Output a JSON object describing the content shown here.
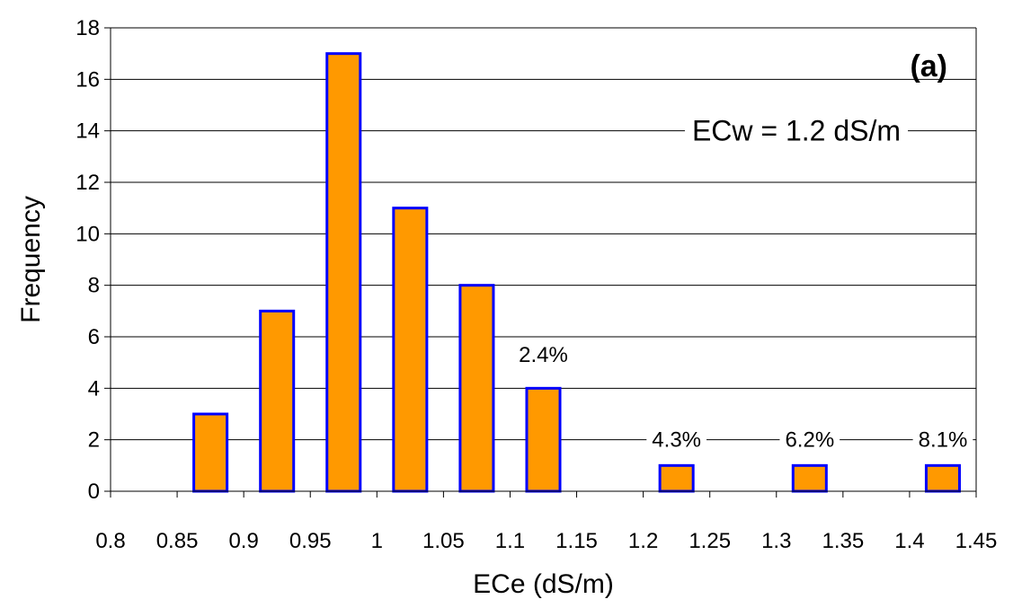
{
  "chart_data": {
    "type": "bar",
    "xlabel": "ECe (dS/m)",
    "ylabel": "Frequency",
    "panel_label": "(a)",
    "ylim": [
      0,
      18
    ],
    "y_ticks": [
      0,
      2,
      4,
      6,
      8,
      10,
      12,
      14,
      16,
      18
    ],
    "xlim": [
      0.8,
      1.45
    ],
    "x_tick_labels": [
      "0.8",
      "0.85",
      "0.9",
      "0.95",
      "1",
      "1.05",
      "1.1",
      "1.15",
      "1.2",
      "1.25",
      "1.3",
      "1.35",
      "1.4",
      "1.45"
    ],
    "categories": [
      0.875,
      0.925,
      0.975,
      1.025,
      1.075,
      1.125,
      1.225,
      1.325,
      1.425
    ],
    "values": [
      3,
      7,
      17,
      11,
      8,
      4,
      1,
      1,
      1
    ],
    "grid": "horizontal",
    "colors": {
      "bar_fill": "#FF9900",
      "bar_edge": "#0000FF",
      "grid": "#000000"
    },
    "annotations": {
      "ecw": {
        "text": "ECw = 1.2 dS/m",
        "y": 14
      },
      "pct_1": {
        "text": "2.4%",
        "x": 1.125,
        "y": 5.3
      },
      "pct_2": {
        "text": "4.3%",
        "x": 1.225,
        "y": 2
      },
      "pct_3": {
        "text": "6.2%",
        "x": 1.325,
        "y": 2
      },
      "pct_4": {
        "text": "8.1%",
        "x": 1.425,
        "y": 2
      }
    }
  }
}
